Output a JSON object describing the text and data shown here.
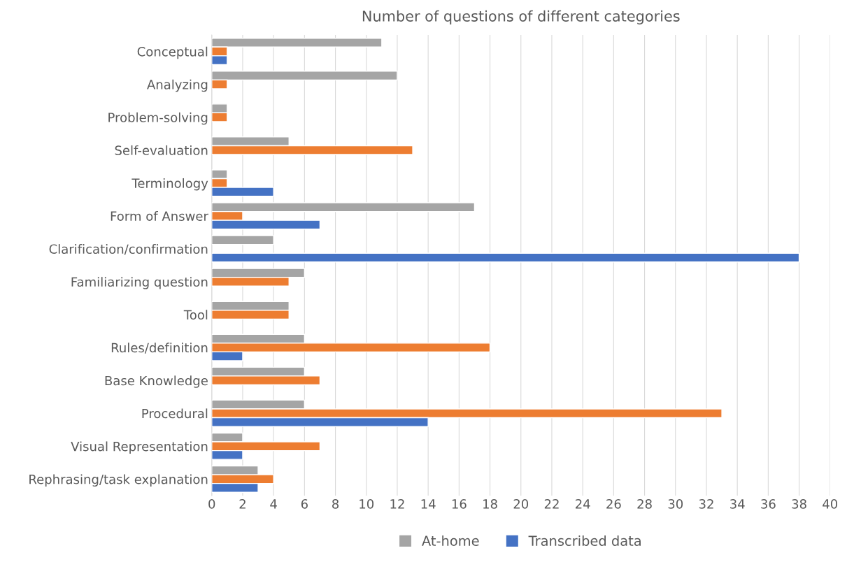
{
  "chart_data": {
    "type": "bar",
    "orientation": "horizontal",
    "title": "Number of questions of different categories",
    "categories": [
      "Conceptual",
      "Analyzing",
      "Problem-solving",
      "Self-evaluation",
      "Terminology",
      "Form of Answer",
      "Clarification/confirmation",
      "Familiarizing question",
      "Tool",
      "Rules/definition",
      "Base Knowledge",
      "Procedural",
      "Visual Representation",
      "Rephrasing/task explanation"
    ],
    "series": [
      {
        "name": "At-home",
        "color": "#a5a5a5",
        "values": [
          11,
          12,
          1,
          5,
          1,
          17,
          4,
          6,
          5,
          6,
          6,
          6,
          2,
          3
        ]
      },
      {
        "color": "#ed7d31",
        "values": [
          1,
          1,
          1,
          13,
          1,
          2,
          null,
          5,
          5,
          18,
          7,
          33,
          7,
          4
        ]
      },
      {
        "name": "Transcribed data",
        "color": "#4472c4",
        "values": [
          1,
          null,
          null,
          null,
          4,
          7,
          38,
          null,
          null,
          2,
          null,
          14,
          2,
          3
        ]
      }
    ],
    "xlim": [
      0,
      40
    ],
    "xticks": [
      0,
      2,
      4,
      6,
      8,
      10,
      12,
      14,
      16,
      18,
      20,
      22,
      24,
      26,
      28,
      30,
      32,
      34,
      36,
      38,
      40
    ],
    "grid": "x",
    "legend": "bottom"
  }
}
